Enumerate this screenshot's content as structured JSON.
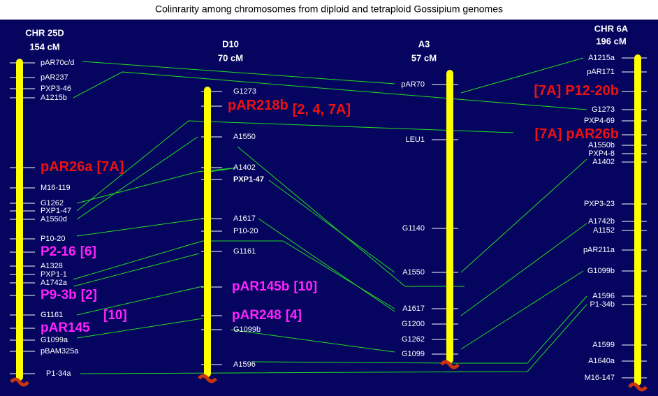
{
  "title": "Colinrarity among chromosomes from diploid and tetraploid Gossipium genomes",
  "chromosomes": [
    {
      "name": "CHR 25D",
      "length": "154 cM",
      "markers": [
        {
          "label": "pAR70c/d"
        },
        {
          "label": "pAR237"
        },
        {
          "label": "PXP3-46"
        },
        {
          "label": "A1215b"
        },
        {
          "label": "pAR26a",
          "tag": "[7A]"
        },
        {
          "label": "M16-119"
        },
        {
          "label": "G1262"
        },
        {
          "label": "PXP1-47"
        },
        {
          "label": "A1550d"
        },
        {
          "label": "P10-20"
        },
        {
          "label": "P2-16",
          "tag": "[6]"
        },
        {
          "label": "A1328"
        },
        {
          "label": "PXP1-1"
        },
        {
          "label": "A1742a"
        },
        {
          "label": "P9-3b",
          "tag": "[2]"
        },
        {
          "label": "G1161"
        },
        {
          "label": "[10]"
        },
        {
          "label": "pAR145"
        },
        {
          "label": "G1099a"
        },
        {
          "label": "pBAM325a"
        },
        {
          "label": "P1-34a"
        }
      ]
    },
    {
      "name": "D10",
      "length": "70 cM",
      "markers": [
        {
          "label": "G1273"
        },
        {
          "label": "pAR218b",
          "tag": "[2, 4, 7A]"
        },
        {
          "label": "A1550"
        },
        {
          "label": "A1402"
        },
        {
          "label": "PXP1-47"
        },
        {
          "label": "A1617"
        },
        {
          "label": "P10-20"
        },
        {
          "label": "G1161"
        },
        {
          "label": "pAR145b",
          "tag": "[10]"
        },
        {
          "label": "pAR248",
          "tag": "[4]"
        },
        {
          "label": "G1099b"
        },
        {
          "label": "A1596"
        }
      ]
    },
    {
      "name": "A3",
      "length": "57 cM",
      "markers": [
        {
          "label": "pAR70"
        },
        {
          "label": "LEU1"
        },
        {
          "label": "G1140"
        },
        {
          "label": "A1550"
        },
        {
          "label": "A1617"
        },
        {
          "label": "G1200"
        },
        {
          "label": "G1262"
        },
        {
          "label": "G1099"
        }
      ]
    },
    {
      "name": "CHR 6A",
      "length": "196 cM",
      "markers": [
        {
          "label": "A1215a"
        },
        {
          "label": "pAR171"
        },
        {
          "label": "P12-20b",
          "tag": "[7A]"
        },
        {
          "label": "G1273"
        },
        {
          "label": "PXP4-69"
        },
        {
          "label": "pAR26b",
          "tag": "[7A]"
        },
        {
          "label": "A1550b"
        },
        {
          "label": "PXP4-8"
        },
        {
          "label": "A1402"
        },
        {
          "label": "PXP3-23"
        },
        {
          "label": "A1742b"
        },
        {
          "label": "A1152"
        },
        {
          "label": "pAR211a"
        },
        {
          "label": "G1099b"
        },
        {
          "label": "A1596"
        },
        {
          "label": "P1-34b"
        },
        {
          "label": "A1599"
        },
        {
          "label": "A1640a"
        },
        {
          "label": "M16-147"
        }
      ]
    }
  ]
}
